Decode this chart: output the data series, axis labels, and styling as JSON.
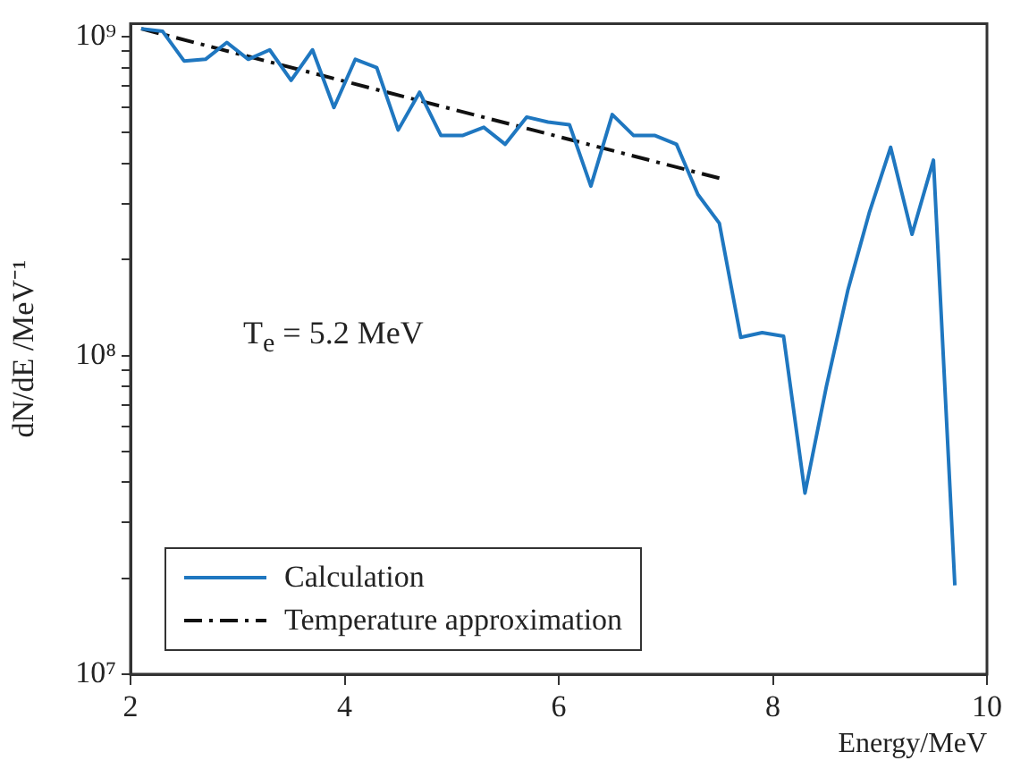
{
  "chart_data": {
    "type": "line",
    "xlabel": "Energy/MeV",
    "ylabel": "dN/dE /MeV⁻¹",
    "x": [
      2.1,
      2.3,
      2.5,
      2.7,
      2.9,
      3.1,
      3.3,
      3.5,
      3.7,
      3.9,
      4.1,
      4.3,
      4.5,
      4.7,
      4.9,
      5.1,
      5.3,
      5.5,
      5.7,
      5.9,
      6.1,
      6.3,
      6.5,
      6.7,
      6.9,
      7.1,
      7.3,
      7.5,
      7.7,
      7.9,
      8.1,
      8.3,
      8.5,
      8.7,
      8.9,
      9.1,
      9.3,
      9.5,
      9.7
    ],
    "series": [
      {
        "name": "Calculation",
        "color": "#1f77c0",
        "line_style": "solid",
        "values": [
          1060000000.0,
          1040000000.0,
          840000000.0,
          850000000.0,
          960000000.0,
          850000000.0,
          910000000.0,
          730000000.0,
          910000000.0,
          600000000.0,
          850000000.0,
          800000000.0,
          510000000.0,
          670000000.0,
          490000000.0,
          490000000.0,
          520000000.0,
          460000000.0,
          560000000.0,
          540000000.0,
          530000000.0,
          340000000.0,
          570000000.0,
          490000000.0,
          490000000.0,
          460000000.0,
          320000000.0,
          260000000.0,
          114000000.0,
          118000000.0,
          115000000.0,
          37000000.0,
          80000000.0,
          160000000.0,
          280000000.0,
          450000000.0,
          240000000.0,
          410000000.0,
          19000000.0
        ]
      },
      {
        "name": "Temperature approximation",
        "color": "#111111",
        "line_style": "dashdot",
        "x": [
          2.1,
          7.5
        ],
        "values": [
          1060000000.0,
          360000000.0
        ]
      }
    ],
    "xlim": [
      2,
      10
    ],
    "xticks": [
      2,
      4,
      6,
      8,
      10
    ],
    "ylim": [
      10000000.0,
      1100000000.0
    ],
    "log": "y",
    "yticks": [
      {
        "value": 10000000.0,
        "label": "10⁷"
      },
      {
        "value": 20000000.0,
        "label": null
      },
      {
        "value": 30000000.0,
        "label": null
      },
      {
        "value": 40000000.0,
        "label": null
      },
      {
        "value": 50000000.0,
        "label": null
      },
      {
        "value": 60000000.0,
        "label": null
      },
      {
        "value": 70000000.0,
        "label": null
      },
      {
        "value": 80000000.0,
        "label": null
      },
      {
        "value": 90000000.0,
        "label": null
      },
      {
        "value": 100000000.0,
        "label": "10⁸"
      },
      {
        "value": 200000000.0,
        "label": null
      },
      {
        "value": 300000000.0,
        "label": null
      },
      {
        "value": 400000000.0,
        "label": null
      },
      {
        "value": 500000000.0,
        "label": null
      },
      {
        "value": 600000000.0,
        "label": null
      },
      {
        "value": 700000000.0,
        "label": null
      },
      {
        "value": 800000000.0,
        "label": null
      },
      {
        "value": 900000000.0,
        "label": null
      },
      {
        "value": 1000000000.0,
        "label": "10⁹"
      }
    ],
    "annotations": [
      "T$_{e}$ = 5.2 MeV"
    ],
    "grid": false,
    "legend": "bottom left",
    "marker": "none"
  }
}
